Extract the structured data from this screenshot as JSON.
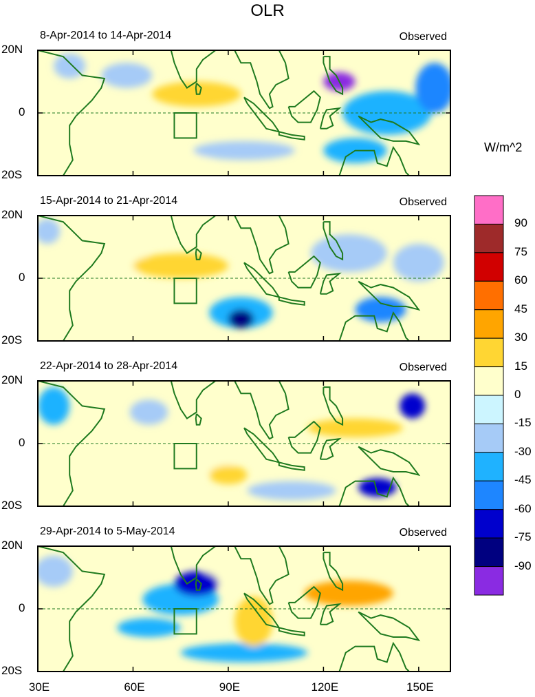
{
  "chart_data": {
    "type": "heatmap",
    "title": "OLR",
    "units": "W/m^2",
    "xlabel": "",
    "ylabel": "",
    "x_ticks": [
      "30E",
      "60E",
      "90E",
      "120E",
      "150E"
    ],
    "y_ticks": [
      "20N",
      "0",
      "20S"
    ],
    "xlim": [
      30,
      160
    ],
    "ylim": [
      -20,
      20
    ],
    "colorbar": {
      "levels": [
        "90",
        "75",
        "60",
        "45",
        "30",
        "15",
        "0",
        "-15",
        "-30",
        "-45",
        "-60",
        "-75",
        "-90"
      ],
      "colors": [
        "#ff6ec7",
        "#9e2a2a",
        "#d10000",
        "#ff6f00",
        "#ffa500",
        "#ffd633",
        "#ffffcc",
        "#ccf5ff",
        "#a6cbf7",
        "#1fb2ff",
        "#1e86ff",
        "#0000cd",
        "#000080",
        "#8a2be2"
      ]
    },
    "panels": [
      {
        "period": "8-Apr-2014 to 14-Apr-2014",
        "label": "Observed",
        "features": [
          {
            "lon": 125,
            "lat": 10,
            "value": -90,
            "sx": 5,
            "sy": 3
          },
          {
            "lon": 140,
            "lat": 0,
            "value": -30,
            "sx": 14,
            "sy": 7
          },
          {
            "lon": 155,
            "lat": 8,
            "value": -45,
            "sx": 6,
            "sy": 8
          },
          {
            "lon": 80,
            "lat": 6,
            "value": 30,
            "sx": 14,
            "sy": 4
          },
          {
            "lon": 58,
            "lat": 12,
            "value": -15,
            "sx": 8,
            "sy": 4
          },
          {
            "lon": 105,
            "lat": 12,
            "value": 15,
            "sx": 9,
            "sy": 5
          },
          {
            "lon": 130,
            "lat": -12,
            "value": -30,
            "sx": 10,
            "sy": 4
          },
          {
            "lon": 95,
            "lat": -12,
            "value": -15,
            "sx": 16,
            "sy": 3
          },
          {
            "lon": 40,
            "lat": 15,
            "value": -15,
            "sx": 5,
            "sy": 4
          },
          {
            "lon": 75,
            "lat": -16,
            "value": 15,
            "sx": 10,
            "sy": 3
          }
        ]
      },
      {
        "period": "15-Apr-2014 to 21-Apr-2014",
        "label": "Observed",
        "features": [
          {
            "lon": 94,
            "lat": -13,
            "value": -75,
            "sx": 4,
            "sy": 3
          },
          {
            "lon": 94,
            "lat": -11,
            "value": -30,
            "sx": 10,
            "sy": 5
          },
          {
            "lon": 138,
            "lat": -10,
            "value": -45,
            "sx": 8,
            "sy": 4
          },
          {
            "lon": 128,
            "lat": 8,
            "value": -15,
            "sx": 12,
            "sy": 6
          },
          {
            "lon": 75,
            "lat": 4,
            "value": 30,
            "sx": 15,
            "sy": 4
          },
          {
            "lon": 55,
            "lat": 5,
            "value": 15,
            "sx": 12,
            "sy": 4
          },
          {
            "lon": 33,
            "lat": 15,
            "value": -15,
            "sx": 4,
            "sy": 4
          },
          {
            "lon": 100,
            "lat": 12,
            "value": 15,
            "sx": 7,
            "sy": 6
          },
          {
            "lon": 150,
            "lat": 5,
            "value": -15,
            "sx": 8,
            "sy": 6
          }
        ]
      },
      {
        "period": "22-Apr-2014 to 28-Apr-2014",
        "label": "Observed",
        "features": [
          {
            "lon": 148,
            "lat": 12,
            "value": -60,
            "sx": 4,
            "sy": 4
          },
          {
            "lon": 137,
            "lat": -14,
            "value": -60,
            "sx": 6,
            "sy": 3
          },
          {
            "lon": 130,
            "lat": 5,
            "value": 30,
            "sx": 15,
            "sy": 3
          },
          {
            "lon": 35,
            "lat": 12,
            "value": -30,
            "sx": 5,
            "sy": 6
          },
          {
            "lon": 70,
            "lat": -6,
            "value": 15,
            "sx": 22,
            "sy": 5
          },
          {
            "lon": 90,
            "lat": -10,
            "value": 30,
            "sx": 6,
            "sy": 3
          },
          {
            "lon": 85,
            "lat": 10,
            "value": 15,
            "sx": 8,
            "sy": 5
          },
          {
            "lon": 110,
            "lat": -15,
            "value": -15,
            "sx": 14,
            "sy": 3
          },
          {
            "lon": 65,
            "lat": 10,
            "value": -15,
            "sx": 6,
            "sy": 4
          }
        ]
      },
      {
        "period": "29-Apr-2014 to 5-May-2014",
        "label": "Observed",
        "features": [
          {
            "lon": 80,
            "lat": 8,
            "value": -60,
            "sx": 7,
            "sy": 4
          },
          {
            "lon": 75,
            "lat": 3,
            "value": -30,
            "sx": 12,
            "sy": 5
          },
          {
            "lon": 95,
            "lat": -14,
            "value": -30,
            "sx": 20,
            "sy": 3
          },
          {
            "lon": 128,
            "lat": 5,
            "value": 45,
            "sx": 14,
            "sy": 4
          },
          {
            "lon": 98,
            "lat": -4,
            "value": 30,
            "sx": 6,
            "sy": 8
          },
          {
            "lon": 88,
            "lat": 12,
            "value": 15,
            "sx": 5,
            "sy": 5
          },
          {
            "lon": 35,
            "lat": 12,
            "value": -15,
            "sx": 6,
            "sy": 5
          },
          {
            "lon": 65,
            "lat": -6,
            "value": -30,
            "sx": 10,
            "sy": 3
          },
          {
            "lon": 150,
            "lat": -8,
            "value": 15,
            "sx": 8,
            "sy": 5
          }
        ]
      }
    ]
  }
}
